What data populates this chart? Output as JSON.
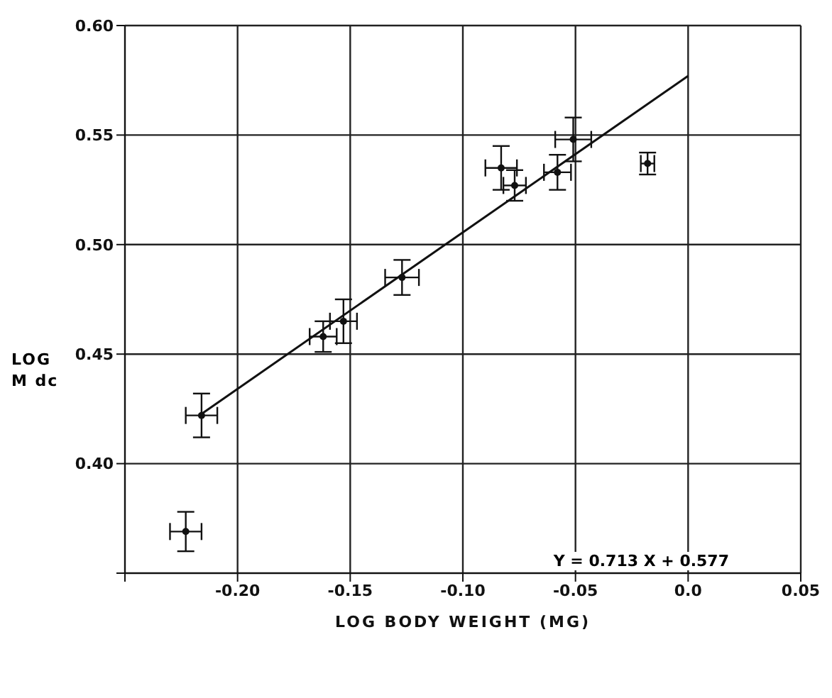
{
  "chart_data": {
    "type": "scatter",
    "xlabel": "LOG BODY WEIGHT (MG)",
    "ylabel": "LOG M dc",
    "annotations": [
      "Y = 0.713 X + 0.577"
    ],
    "series": [
      {
        "marker": "circle",
        "color": "#111111",
        "x": [
          -0.223,
          -0.216,
          -0.162,
          -0.153,
          -0.127,
          -0.083,
          -0.077,
          -0.058,
          -0.051,
          -0.018
        ],
        "values": [
          0.369,
          0.422,
          0.458,
          0.465,
          0.485,
          0.535,
          0.527,
          0.533,
          0.548,
          0.537
        ],
        "errors": [
          0.009,
          0.01,
          0.007,
          0.01,
          0.008,
          0.01,
          0.007,
          0.008,
          0.01,
          0.005
        ],
        "xerrors": [
          0.007,
          0.007,
          0.006,
          0.006,
          0.0075,
          0.007,
          0.005,
          0.006,
          0.008,
          0.003
        ]
      },
      {
        "type": "line",
        "marker": "none",
        "color": "#111111",
        "x": [
          -0.217,
          0.0
        ],
        "values": [
          0.422,
          0.577
        ]
      }
    ],
    "xlim": [
      -0.25,
      0.05
    ],
    "xticks": [
      {
        "value": -0.25,
        "label": null
      },
      {
        "value": -0.2,
        "label": "-0.20"
      },
      {
        "value": -0.15,
        "label": "-0.15"
      },
      {
        "value": -0.1,
        "label": "-0.10"
      },
      {
        "value": -0.05,
        "label": "-0.05"
      },
      {
        "value": 0,
        "label": "0.0"
      },
      {
        "value": 0.05,
        "label": "0.05"
      }
    ],
    "ylim": [
      0.35,
      0.6
    ],
    "yticks": [
      {
        "value": 0.35,
        "label": null
      },
      {
        "value": 0.4,
        "label": "0.40"
      },
      {
        "value": 0.45,
        "label": "0.45"
      },
      {
        "value": 0.5,
        "label": "0.50"
      },
      {
        "value": 0.55,
        "label": "0.55"
      },
      {
        "value": 0.6,
        "label": "0.60"
      }
    ],
    "grid": true,
    "legend": false
  }
}
